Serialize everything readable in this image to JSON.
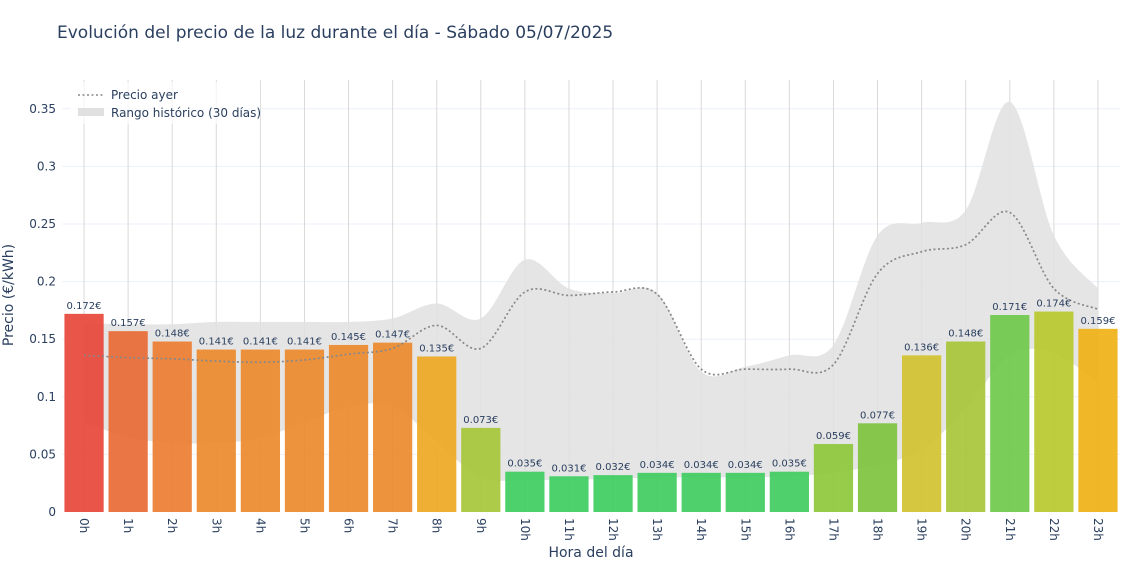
{
  "chart_data": {
    "type": "bar",
    "title": "Evolución del precio de la luz durante el día - Sábado 05/07/2025",
    "xlabel": "Hora del día",
    "ylabel": "Precio (€/kWh)",
    "ylim": [
      0,
      0.375
    ],
    "yticks": [
      0,
      0.05,
      0.1,
      0.15,
      0.2,
      0.25,
      0.3,
      0.35
    ],
    "ytick_labels": [
      "0",
      "0.05",
      "0.1",
      "0.15",
      "0.2",
      "0.25",
      "0.3",
      "0.35"
    ],
    "categories": [
      "0h",
      "1h",
      "2h",
      "3h",
      "4h",
      "5h",
      "6h",
      "7h",
      "8h",
      "9h",
      "10h",
      "11h",
      "12h",
      "13h",
      "14h",
      "15h",
      "16h",
      "17h",
      "18h",
      "19h",
      "20h",
      "21h",
      "22h",
      "23h"
    ],
    "values": [
      0.172,
      0.157,
      0.148,
      0.141,
      0.141,
      0.141,
      0.145,
      0.147,
      0.135,
      0.073,
      0.035,
      0.031,
      0.032,
      0.034,
      0.034,
      0.034,
      0.035,
      0.059,
      0.077,
      0.136,
      0.148,
      0.171,
      0.174,
      0.159
    ],
    "value_labels": [
      "0.172€",
      "0.157€",
      "0.148€",
      "0.141€",
      "0.141€",
      "0.141€",
      "0.145€",
      "0.147€",
      "0.135€",
      "0.073€",
      "0.035€",
      "0.031€",
      "0.032€",
      "0.034€",
      "0.034€",
      "0.034€",
      "0.035€",
      "0.059€",
      "0.077€",
      "0.136€",
      "0.148€",
      "0.171€",
      "0.174€",
      "0.159€"
    ],
    "bar_colors": [
      "#e8473a",
      "#e96a35",
      "#eb7d32",
      "#ec8a2e",
      "#ec8a2e",
      "#ec8a2e",
      "#ec8a2e",
      "#ec8a2e",
      "#eda823",
      "#a6c53a",
      "#3dcd5f",
      "#3dcd5f",
      "#3dcd5f",
      "#40cc60",
      "#40cc60",
      "#40cc60",
      "#40cc60",
      "#8dc83a",
      "#7ec43e",
      "#d3c230",
      "#a8c438",
      "#6ec94a",
      "#b7c92e",
      "#efb216"
    ],
    "series": [
      {
        "name": "Precio ayer",
        "style": "dotted",
        "color": "#888888",
        "values": [
          0.136,
          0.134,
          0.133,
          0.131,
          0.13,
          0.132,
          0.137,
          0.142,
          0.162,
          0.142,
          0.191,
          0.188,
          0.191,
          0.189,
          0.124,
          0.124,
          0.124,
          0.128,
          0.207,
          0.226,
          0.232,
          0.26,
          0.194,
          0.176
        ]
      },
      {
        "name": "Rango histórico (30 días)",
        "type": "band",
        "color": "#e0e0e0",
        "upper": [
          0.164,
          0.163,
          0.163,
          0.165,
          0.165,
          0.165,
          0.165,
          0.168,
          0.181,
          0.168,
          0.219,
          0.194,
          0.19,
          0.19,
          0.122,
          0.126,
          0.136,
          0.145,
          0.24,
          0.251,
          0.262,
          0.356,
          0.24,
          0.194
        ],
        "lower": [
          0.078,
          0.065,
          0.06,
          0.06,
          0.064,
          0.078,
          0.091,
          0.092,
          0.061,
          0.03,
          0.028,
          0.028,
          0.029,
          0.03,
          0.03,
          0.03,
          0.031,
          0.034,
          0.041,
          0.054,
          0.09,
          0.136,
          0.138,
          0.112
        ]
      }
    ],
    "legend": {
      "position": "top-left",
      "items": [
        "Precio ayer",
        "Rango histórico (30 días)"
      ]
    }
  }
}
